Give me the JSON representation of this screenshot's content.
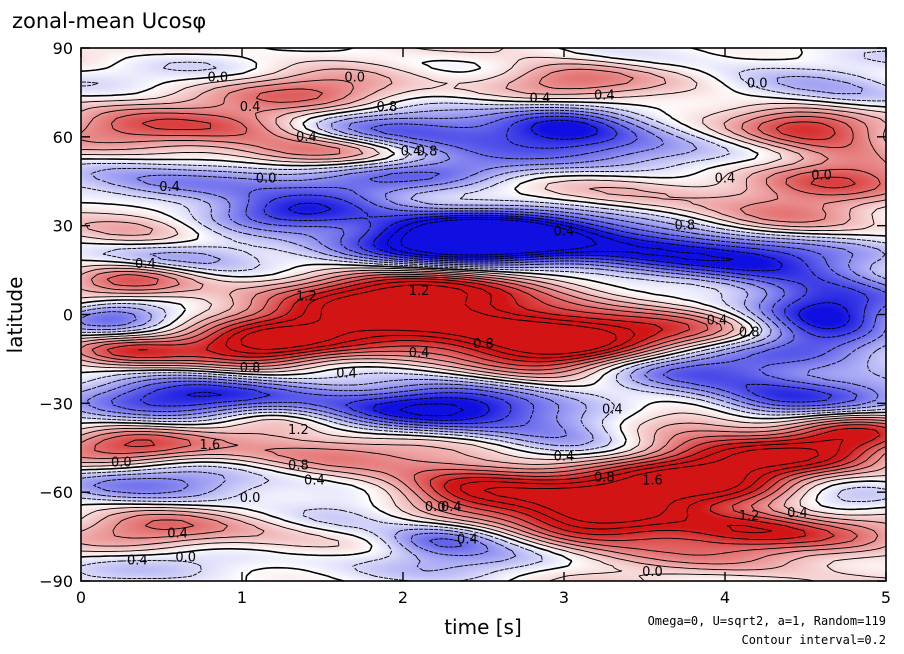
{
  "chart_data": {
    "type": "heatmap",
    "title": "zonal-mean Ucosφ",
    "xlabel": "time [s]",
    "ylabel": "latitude",
    "xlim": [
      0,
      5
    ],
    "ylim": [
      -90,
      90
    ],
    "xticks": [
      "0",
      "1",
      "2",
      "3",
      "4",
      "5"
    ],
    "yticks": [
      "90",
      "60",
      "30",
      "0",
      "−30",
      "−60",
      "−90"
    ],
    "notes": [
      "Omega=0, U=sqrt2, a=1, Random=119",
      "Contour interval=0.2"
    ],
    "contour_interval": 0.2,
    "colors": {
      "positive": "#e02020",
      "negative": "#1010e0",
      "zero": "#ffffff"
    },
    "contour_labels": [
      {
        "t": 0.85,
        "lat": 80,
        "text": "0.0"
      },
      {
        "t": 1.05,
        "lat": 70,
        "text": "0.4"
      },
      {
        "t": 1.7,
        "lat": 80,
        "text": "0.0"
      },
      {
        "t": 1.9,
        "lat": 70,
        "text": "0.8"
      },
      {
        "t": 2.85,
        "lat": 73,
        "text": "0.4"
      },
      {
        "t": 3.25,
        "lat": 74,
        "text": "0.4"
      },
      {
        "t": 4.2,
        "lat": 78,
        "text": "0.0"
      },
      {
        "t": 1.4,
        "lat": 60,
        "text": "0.4"
      },
      {
        "t": 2.05,
        "lat": 55,
        "text": "0.4"
      },
      {
        "t": 2.15,
        "lat": 55,
        "text": "0.8"
      },
      {
        "t": 0.55,
        "lat": 43,
        "text": "0.4"
      },
      {
        "t": 1.15,
        "lat": 46,
        "text": "0.0"
      },
      {
        "t": 4.0,
        "lat": 46,
        "text": "0.4"
      },
      {
        "t": 4.6,
        "lat": 47,
        "text": "0.0"
      },
      {
        "t": 3.75,
        "lat": 30,
        "text": "0.8"
      },
      {
        "t": 3.0,
        "lat": 28,
        "text": "0.4"
      },
      {
        "t": 0.4,
        "lat": 17,
        "text": "0.4"
      },
      {
        "t": 1.4,
        "lat": 6,
        "text": "1.2"
      },
      {
        "t": 2.1,
        "lat": 8,
        "text": "1.2"
      },
      {
        "t": 3.95,
        "lat": -2,
        "text": "0.4"
      },
      {
        "t": 4.15,
        "lat": -6,
        "text": "0.8"
      },
      {
        "t": 2.1,
        "lat": -13,
        "text": "0.4"
      },
      {
        "t": 2.5,
        "lat": -10,
        "text": "0.8"
      },
      {
        "t": 1.05,
        "lat": -18,
        "text": "0.8"
      },
      {
        "t": 1.65,
        "lat": -20,
        "text": "0.4"
      },
      {
        "t": 3.3,
        "lat": -32,
        "text": "0.4"
      },
      {
        "t": 0.8,
        "lat": -44,
        "text": "1.6"
      },
      {
        "t": 1.35,
        "lat": -39,
        "text": "1.2"
      },
      {
        "t": 0.25,
        "lat": -50,
        "text": "0.0"
      },
      {
        "t": 1.35,
        "lat": -51,
        "text": "0.8"
      },
      {
        "t": 1.45,
        "lat": -56,
        "text": "0.4"
      },
      {
        "t": 3.0,
        "lat": -48,
        "text": "0.4"
      },
      {
        "t": 3.25,
        "lat": -55,
        "text": "0.8"
      },
      {
        "t": 3.55,
        "lat": -56,
        "text": "1.6"
      },
      {
        "t": 1.05,
        "lat": -62,
        "text": "0.0"
      },
      {
        "t": 2.2,
        "lat": -65,
        "text": "0.0"
      },
      {
        "t": 2.3,
        "lat": -65,
        "text": "0.4"
      },
      {
        "t": 4.15,
        "lat": -68,
        "text": "1.2"
      },
      {
        "t": 4.45,
        "lat": -67,
        "text": "0.4"
      },
      {
        "t": 0.6,
        "lat": -74,
        "text": "0.4"
      },
      {
        "t": 2.4,
        "lat": -76,
        "text": "0.4"
      },
      {
        "t": 0.65,
        "lat": -82,
        "text": "0.0"
      },
      {
        "t": 0.35,
        "lat": -83,
        "text": "0.4"
      },
      {
        "t": 3.55,
        "lat": -87,
        "text": "0.0"
      }
    ]
  }
}
